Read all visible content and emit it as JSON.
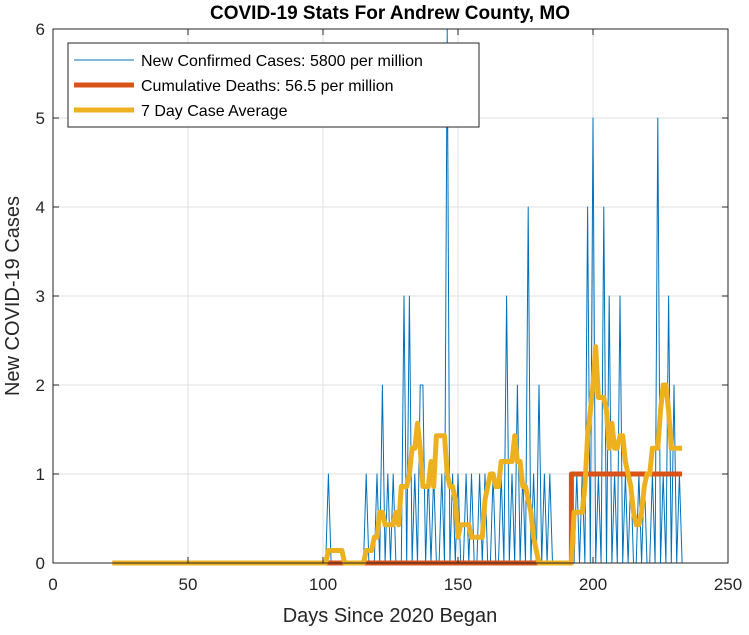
{
  "chart_data": {
    "type": "line",
    "title": "COVID-19 Stats For Andrew County, MO",
    "xlabel": "Days Since 2020 Began",
    "ylabel": "New COVID-19 Cases",
    "xlim": [
      0,
      250
    ],
    "ylim": [
      0,
      6
    ],
    "xticks": [
      0,
      50,
      100,
      150,
      200,
      250
    ],
    "yticks": [
      0,
      1,
      2,
      3,
      4,
      5,
      6
    ],
    "grid": true,
    "legend_position": "top-left",
    "series": [
      {
        "name": "New Confirmed Cases: 5800 per million",
        "color": "#0072BD",
        "line_width": "thin",
        "x": [
          22,
          100,
          101,
          102,
          103,
          104,
          105,
          106,
          107,
          108,
          109,
          110,
          111,
          112,
          113,
          114,
          115,
          116,
          117,
          118,
          119,
          120,
          121,
          122,
          123,
          124,
          125,
          126,
          127,
          128,
          129,
          130,
          131,
          132,
          133,
          134,
          135,
          136,
          137,
          138,
          139,
          140,
          141,
          142,
          143,
          144,
          145,
          146,
          147,
          148,
          149,
          150,
          151,
          152,
          153,
          154,
          155,
          156,
          157,
          158,
          159,
          160,
          161,
          162,
          163,
          164,
          165,
          166,
          167,
          168,
          169,
          170,
          171,
          172,
          173,
          174,
          175,
          176,
          177,
          178,
          179,
          180,
          181,
          182,
          183,
          184,
          185,
          186,
          187,
          188,
          189,
          190,
          191,
          192,
          193,
          194,
          195,
          196,
          197,
          198,
          199,
          200,
          201,
          202,
          203,
          204,
          205,
          206,
          207,
          208,
          209,
          210,
          211,
          212,
          213,
          214,
          215,
          216,
          217,
          218,
          219,
          220,
          221,
          222,
          223,
          224,
          225,
          226,
          227,
          228,
          229,
          230,
          231,
          232,
          233
        ],
        "y": [
          0,
          0,
          0,
          1,
          0,
          0,
          0,
          0,
          0,
          0,
          0,
          0,
          0,
          0,
          0,
          0,
          0,
          1,
          0,
          0,
          0,
          1,
          0,
          2,
          0,
          1,
          0,
          1,
          0,
          0,
          0,
          3,
          0,
          3,
          0,
          1,
          0,
          2,
          2,
          0,
          1,
          0,
          1,
          0,
          0,
          1,
          0,
          6,
          0,
          1,
          0,
          1,
          0,
          0,
          1,
          0,
          1,
          0,
          0,
          1,
          0,
          1,
          0,
          0,
          1,
          0,
          0,
          1,
          0,
          3,
          0,
          1,
          0,
          2,
          0,
          1,
          0,
          4,
          0,
          1,
          0,
          2,
          0,
          1,
          0,
          1,
          0,
          0,
          0,
          0,
          0,
          0,
          0,
          0,
          0,
          1,
          0,
          1,
          0,
          4,
          0,
          5,
          0,
          1,
          0,
          4,
          0,
          3,
          0,
          1,
          0,
          3,
          0,
          1,
          0,
          1,
          0,
          0,
          1,
          0,
          1,
          0,
          0,
          1,
          0,
          5,
          0,
          1,
          0,
          3,
          0,
          2,
          0,
          1,
          0
        ]
      },
      {
        "name": "Cumulative Deaths: 56.5 per million",
        "color": "#D95319",
        "line_width": "thick",
        "x": [
          22,
          192,
          192,
          233
        ],
        "y": [
          0,
          0,
          1,
          1
        ]
      },
      {
        "name": "7 Day Case Average",
        "color": "#EDB120",
        "line_width": "thick",
        "x": [
          22,
          100,
          101,
          102,
          103,
          104,
          105,
          106,
          107,
          108,
          109,
          110,
          111,
          112,
          113,
          114,
          115,
          116,
          117,
          118,
          119,
          120,
          121,
          122,
          123,
          124,
          125,
          126,
          127,
          128,
          129,
          130,
          131,
          132,
          133,
          134,
          135,
          136,
          137,
          138,
          139,
          140,
          141,
          142,
          143,
          144,
          145,
          146,
          147,
          148,
          149,
          150,
          151,
          152,
          153,
          154,
          155,
          156,
          157,
          158,
          159,
          160,
          161,
          162,
          163,
          164,
          165,
          166,
          167,
          168,
          169,
          170,
          171,
          172,
          173,
          174,
          175,
          176,
          177,
          178,
          179,
          180,
          181,
          182,
          183,
          184,
          185,
          186,
          187,
          188,
          189,
          190,
          191,
          192,
          193,
          194,
          195,
          196,
          197,
          198,
          199,
          200,
          201,
          202,
          203,
          204,
          205,
          206,
          207,
          208,
          209,
          210,
          211,
          212,
          213,
          214,
          215,
          216,
          217,
          218,
          219,
          220,
          221,
          222,
          223,
          224,
          225,
          226,
          227,
          228,
          229,
          230,
          231,
          232,
          233
        ],
        "y": [
          0,
          0,
          0,
          0.14,
          0.14,
          0.14,
          0.14,
          0.14,
          0.14,
          0,
          0,
          0,
          0,
          0,
          0,
          0,
          0,
          0.14,
          0.14,
          0.14,
          0.29,
          0.29,
          0.57,
          0.57,
          0.43,
          0.43,
          0.43,
          0.43,
          0.57,
          0.43,
          0.86,
          0.86,
          0.86,
          1.0,
          1.29,
          1.29,
          1.57,
          1.29,
          0.86,
          0.86,
          0.86,
          1.14,
          0.86,
          1.43,
          1.43,
          1.43,
          1.43,
          1.0,
          0.86,
          0.86,
          0.71,
          0.29,
          0.43,
          0.43,
          0.43,
          0.43,
          0.29,
          0.29,
          0.29,
          0.29,
          0.29,
          0.71,
          0.86,
          1.0,
          1.0,
          0.86,
          0.86,
          1.14,
          1.14,
          1.14,
          1.14,
          1.14,
          1.43,
          1.14,
          1.14,
          0.86,
          0.86,
          0.71,
          0.57,
          0.29,
          0.14,
          0,
          0,
          0,
          0,
          0,
          0,
          0,
          0,
          0,
          0,
          0,
          0,
          0,
          0.57,
          0.57,
          0.57,
          0.57,
          0.86,
          1.43,
          1.71,
          2.0,
          2.43,
          1.86,
          1.86,
          1.86,
          1.71,
          1.29,
          1.57,
          1.29,
          1.29,
          1.43,
          1.43,
          1.14,
          1.0,
          0.86,
          0.57,
          0.43,
          0.43,
          0.57,
          0.86,
          1.0,
          1.0,
          1.29,
          1.29,
          1.29,
          1.71,
          2.0,
          2.0,
          1.71,
          1.29,
          1.29,
          1.29,
          1.29,
          1.29
        ]
      }
    ]
  }
}
